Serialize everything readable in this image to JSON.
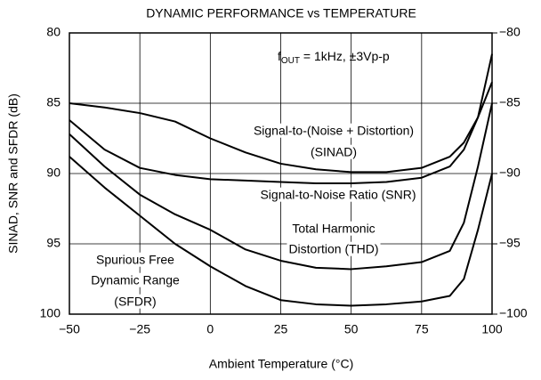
{
  "chart_data": {
    "type": "line",
    "title": "DYNAMIC PERFORMANCE vs TEMPERATURE",
    "x_label": "Ambient Temperature (°C)",
    "y_label": "SINAD, SNR and SFDR (dB)",
    "x": [
      -50,
      -37.5,
      -25,
      -12.5,
      0,
      12.5,
      25,
      37.5,
      50,
      62.5,
      75,
      85,
      90,
      95,
      100
    ],
    "series": [
      {
        "name": "SINAD",
        "color": "#000000",
        "values": [
          85,
          85.3,
          85.7,
          86.3,
          87.5,
          88.5,
          89.3,
          89.7,
          89.9,
          89.9,
          89.6,
          88.8,
          87.8,
          86,
          83.5
        ]
      },
      {
        "name": "SNR",
        "color": "#000000",
        "values": [
          86.2,
          88.3,
          89.6,
          90.1,
          90.4,
          90.5,
          90.6,
          90.7,
          90.7,
          90.6,
          90.3,
          89.5,
          88.3,
          86,
          81.5
        ]
      },
      {
        "name": "THD",
        "color": "#000000",
        "values": [
          87.2,
          89.5,
          91.5,
          92.9,
          94,
          95.4,
          96.2,
          96.7,
          96.8,
          96.6,
          96.3,
          95.5,
          93.5,
          89.5,
          85
        ]
      },
      {
        "name": "SFDR",
        "color": "#000000",
        "values": [
          88.8,
          91,
          93,
          95,
          96.6,
          98,
          99,
          99.3,
          99.4,
          99.3,
          99.1,
          98.7,
          97.5,
          94,
          90
        ]
      }
    ],
    "xlim": [
      -50,
      100
    ],
    "xticks": [
      {
        "value": -50,
        "label": "−50"
      },
      {
        "value": -25,
        "label": "−25"
      },
      0,
      25,
      50,
      75,
      100
    ],
    "ylim": [
      80,
      100
    ],
    "yticks": [
      80,
      85,
      90,
      95,
      100
    ],
    "y2lim": [
      -80,
      -100
    ],
    "y2ticks": [
      {
        "value": -80,
        "label": "−80"
      },
      {
        "value": -85,
        "label": "−85"
      },
      {
        "value": -90,
        "label": "−90"
      },
      {
        "value": -95,
        "label": "−95"
      },
      {
        "value": -100,
        "label": "−100"
      }
    ],
    "grid": true,
    "condition": {
      "text": "f",
      "sub": "OUT",
      "rest": " = 1kHz, ±3Vp-p"
    },
    "annotations": [
      "Signal-to-(Noise + Distortion)",
      "(SINAD)",
      "Signal-to-Noise Ratio (SNR)",
      "Total Harmonic",
      "Distortion (THD)",
      "Spurious Free",
      "Dynamic Range",
      "(SFDR)"
    ]
  }
}
